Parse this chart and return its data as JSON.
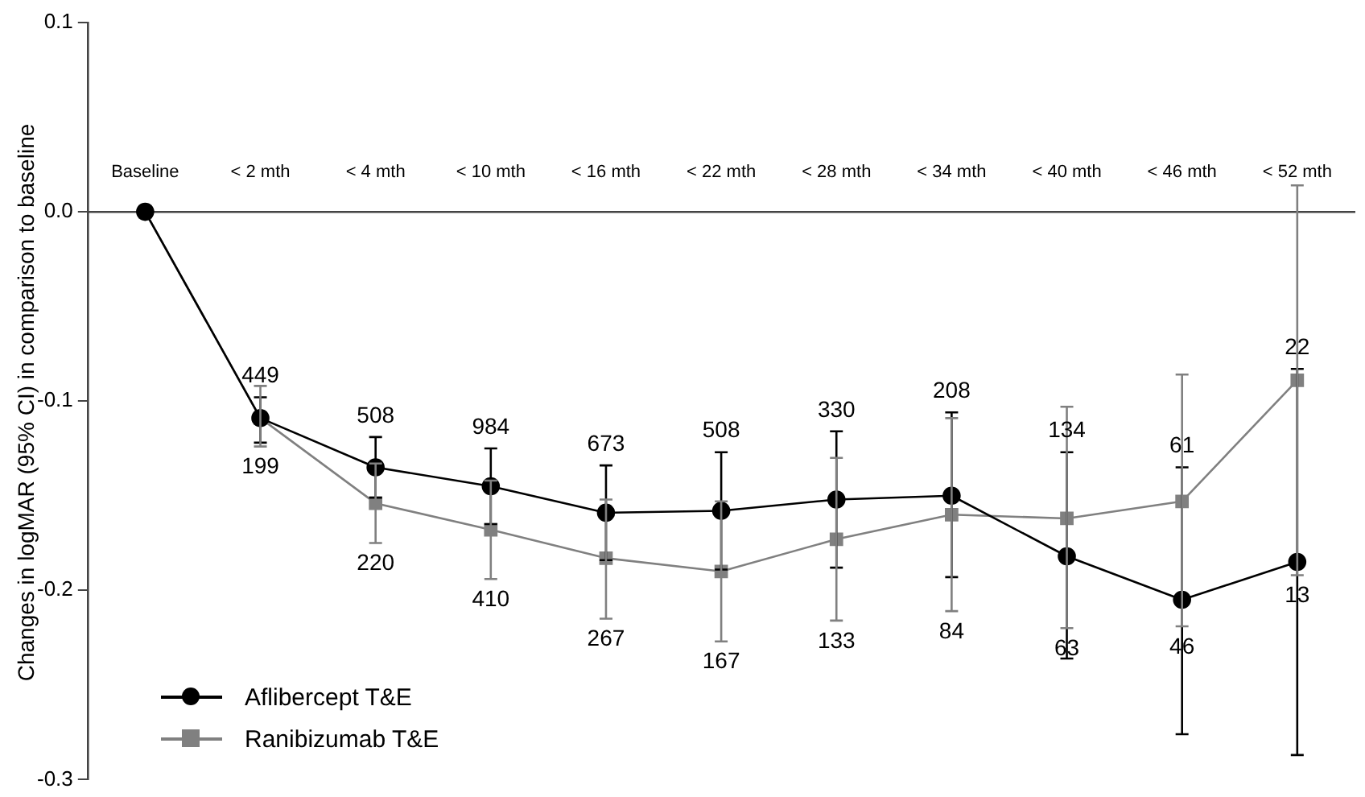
{
  "chart_data": {
    "type": "line",
    "ylabel": "Changes in logMAR (95% CI) in comparison to baseline",
    "categories": [
      "Baseline",
      "< 2 mth",
      "< 4 mth",
      "< 10 mth",
      "< 16 mth",
      "< 22 mth",
      "< 28 mth",
      "< 34 mth",
      "< 40 mth",
      "< 46 mth",
      "< 52 mth"
    ],
    "series": [
      {
        "name": "Aflibercept T&E",
        "color": "#000000",
        "marker": "circle",
        "values": [
          0,
          -0.109,
          -0.135,
          -0.145,
          -0.159,
          -0.158,
          -0.152,
          -0.15,
          -0.182,
          -0.205,
          -0.185
        ],
        "errors": [
          null,
          [
            -0.122,
            -0.098
          ],
          [
            -0.151,
            -0.119
          ],
          [
            -0.165,
            -0.125
          ],
          [
            -0.184,
            -0.134
          ],
          [
            -0.189,
            -0.127
          ],
          [
            -0.188,
            -0.116
          ],
          [
            -0.193,
            -0.106
          ],
          [
            -0.236,
            -0.127
          ],
          [
            -0.276,
            -0.135
          ],
          [
            -0.287,
            -0.083
          ]
        ]
      },
      {
        "name": "Ranibizumab T&E",
        "color": "#808080",
        "marker": "square",
        "values": [
          0,
          -0.109,
          -0.154,
          -0.168,
          -0.183,
          -0.19,
          -0.173,
          -0.16,
          -0.162,
          -0.153,
          -0.089
        ],
        "errors": [
          null,
          [
            -0.124,
            -0.092
          ],
          [
            -0.175,
            -0.133
          ],
          [
            -0.194,
            -0.142
          ],
          [
            -0.215,
            -0.152
          ],
          [
            -0.227,
            -0.153
          ],
          [
            -0.216,
            -0.13
          ],
          [
            -0.211,
            -0.109
          ],
          [
            -0.22,
            -0.103
          ],
          [
            -0.219,
            -0.086
          ],
          [
            -0.192,
            0.014
          ]
        ]
      }
    ],
    "annotations": [
      "449",
      "508",
      "984",
      "673",
      "508",
      "330",
      "208",
      "134",
      "61",
      "22",
      "199",
      "220",
      "410",
      "267",
      "167",
      "133",
      "84",
      "63",
      "46",
      "13"
    ],
    "ylim": [
      -0.3,
      0.1
    ],
    "yticks": [
      -0.3,
      -0.2,
      -0.1,
      {
        "value": 0,
        "label": "0.0"
      },
      0.1
    ],
    "grid": false,
    "legend": "bottom left",
    "line_style": "solid"
  }
}
